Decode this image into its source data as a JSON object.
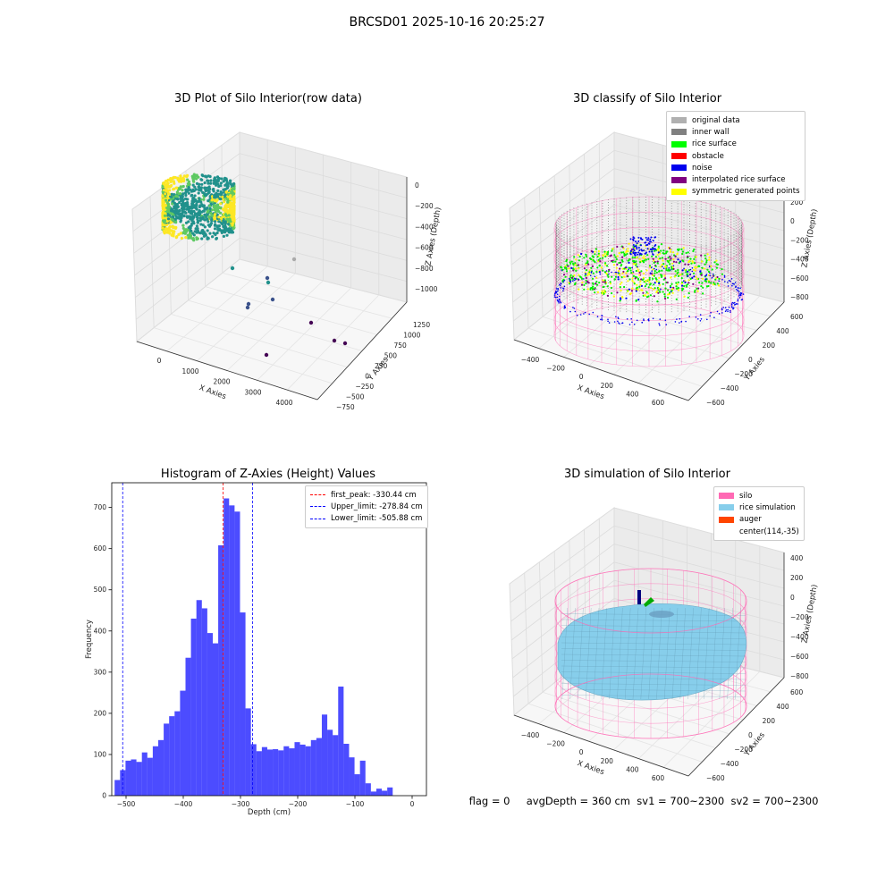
{
  "figure_title": "BRCSD01 2025-10-16 20:25:27",
  "status_line": "flag = 0     avgDepth = 360 cm  sv1 = 700~2300  sv2 = 700~2300",
  "chart_data": [
    {
      "type": "scatter",
      "projection": "3d",
      "title": "3D Plot of Silo Interior(row data)",
      "xlabel": "X Axies",
      "ylabel": "Y Axies",
      "zlabel": "Z Axies (Depth)",
      "x_ticks": [
        "0",
        "1000",
        "2000",
        "3000",
        "4000"
      ],
      "y_ticks": [
        "−750",
        "−500",
        "−250",
        "0",
        "250",
        "500",
        "750",
        "1000",
        "1250"
      ],
      "z_ticks": [
        "−1000",
        "−800",
        "−600",
        "−400",
        "−200",
        "0"
      ],
      "colormap": "viridis",
      "note_colors": [
        "#440154",
        "#3b528b",
        "#21918c",
        "#5ec962",
        "#fde725"
      ]
    },
    {
      "type": "scatter",
      "projection": "3d",
      "title": "3D classify of Silo Interior",
      "xlabel": "X Axies",
      "ylabel": "Y Axies",
      "zlabel": "Z Axies (Depth)",
      "x_ticks": [
        "−400",
        "−200",
        "0",
        "200",
        "400",
        "600"
      ],
      "y_ticks": [
        "−600",
        "−400",
        "−200",
        "0",
        "200",
        "400",
        "600"
      ],
      "z_ticks": [
        "−800",
        "−600",
        "−400",
        "−200",
        "0",
        "200"
      ],
      "legend": [
        {
          "label": "original data",
          "color": "#b0b0b0"
        },
        {
          "label": "inner wall",
          "color": "#808080"
        },
        {
          "label": "rice surface",
          "color": "#00ff00"
        },
        {
          "label": "obstacle",
          "color": "#ff0000"
        },
        {
          "label": "noise",
          "color": "#0000ee"
        },
        {
          "label": "interpolated rice surface",
          "color": "#800080"
        },
        {
          "label": "symmetric generated points",
          "color": "#ffff00"
        }
      ],
      "legend_position": "upper right"
    },
    {
      "type": "bar",
      "title": "Histogram of Z-Axies (Height) Values",
      "xlabel": "Depth (cm)",
      "ylabel": "Frequency",
      "xlim": [
        -525,
        25
      ],
      "ylim": [
        0,
        760
      ],
      "x_ticks": [
        -500,
        -400,
        -300,
        -200,
        -100,
        0
      ],
      "y_ticks": [
        0,
        100,
        200,
        300,
        400,
        500,
        600,
        700
      ],
      "bin_start": -520,
      "bin_width": 9.53,
      "values": [
        38,
        62,
        85,
        88,
        82,
        105,
        92,
        120,
        135,
        175,
        193,
        205,
        255,
        335,
        430,
        475,
        455,
        395,
        370,
        608,
        722,
        705,
        690,
        445,
        212,
        125,
        108,
        118,
        112,
        113,
        110,
        120,
        115,
        130,
        124,
        120,
        135,
        140,
        197,
        160,
        147,
        265,
        126,
        93,
        52,
        85,
        30,
        10,
        17,
        12,
        20
      ],
      "bar_color": "#0000ff",
      "lines": [
        {
          "label": "first_peak: -330.44 cm",
          "x": -330.44,
          "color": "#ff0000"
        },
        {
          "label": "Upper_limit: -278.84 cm",
          "x": -278.84,
          "color": "#0000ff"
        },
        {
          "label": "Lower_limit: -505.88 cm",
          "x": -505.88,
          "color": "#0000ff"
        }
      ],
      "legend_position": "upper right"
    },
    {
      "type": "surface",
      "projection": "3d",
      "title": "3D simulation of Silo Interior",
      "xlabel": "X Axies",
      "ylabel": "Y Axies",
      "zlabel": "Z Axies (Depth)",
      "x_ticks": [
        "−400",
        "−200",
        "0",
        "200",
        "400",
        "600"
      ],
      "y_ticks": [
        "−600",
        "−400",
        "−200",
        "0",
        "200",
        "400",
        "600"
      ],
      "z_ticks": [
        "−800",
        "−600",
        "−400",
        "−200",
        "0",
        "200",
        "400"
      ],
      "legend": [
        {
          "label": "silo",
          "color": "#ff69b4"
        },
        {
          "label": "rice simulation",
          "color": "#87ceeb"
        },
        {
          "label": "auger",
          "color": "#ff4500"
        },
        {
          "label": "center(114,-35)",
          "color": ""
        }
      ],
      "legend_position": "upper right"
    }
  ]
}
